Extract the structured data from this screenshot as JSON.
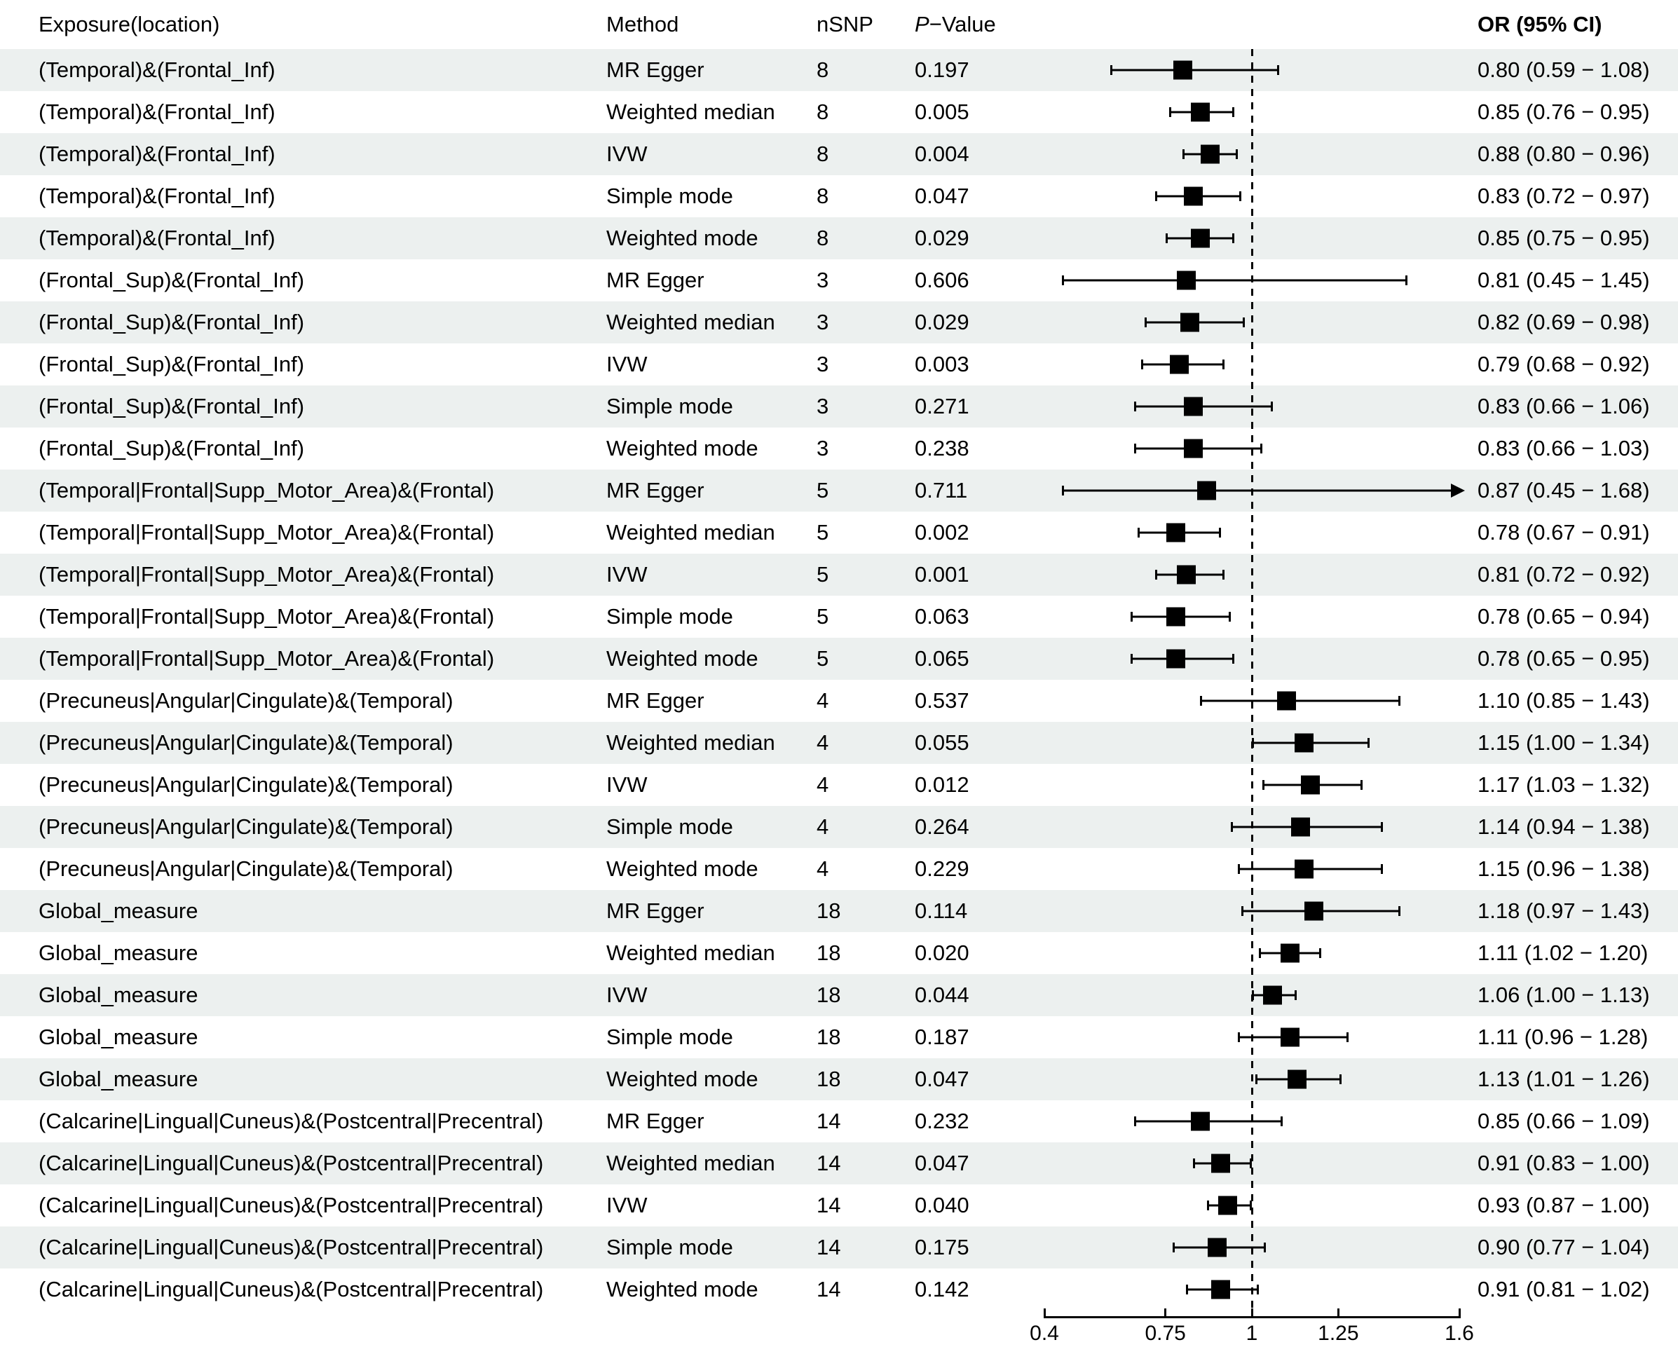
{
  "header": {
    "exposure": "Exposure(location)",
    "method": "Method",
    "nsnp": "nSNP",
    "pvalue_italic": "P",
    "pvalue_rest": "−Value",
    "or_ci": "OR (95% CI)"
  },
  "colors": {
    "stripe": "#ecf0ef",
    "marker": "#000000",
    "text": "#000000"
  },
  "axis": {
    "min": 0.4,
    "max": 1.6,
    "ref_line": 1,
    "ticks": [
      0.4,
      0.75,
      1,
      1.25,
      1.6
    ],
    "tick_labels": [
      "0.4",
      "0.75",
      "1",
      "1.25",
      "1.6"
    ]
  },
  "chart_data": {
    "type": "forest",
    "title": "",
    "xlabel": "",
    "xlim": [
      0.4,
      1.6
    ],
    "reference_line": 1,
    "rows": [
      {
        "exposure": "(Temporal)&(Frontal_Inf)",
        "method": "MR Egger",
        "nsnp": "8",
        "pvalue": "0.197",
        "or": 0.8,
        "lo": 0.59,
        "hi": 1.08,
        "label": "0.80 (0.59 − 1.08)"
      },
      {
        "exposure": "(Temporal)&(Frontal_Inf)",
        "method": "Weighted median",
        "nsnp": "8",
        "pvalue": "0.005",
        "or": 0.85,
        "lo": 0.76,
        "hi": 0.95,
        "label": "0.85 (0.76 − 0.95)"
      },
      {
        "exposure": "(Temporal)&(Frontal_Inf)",
        "method": "IVW",
        "nsnp": "8",
        "pvalue": "0.004",
        "or": 0.88,
        "lo": 0.8,
        "hi": 0.96,
        "label": "0.88 (0.80 − 0.96)"
      },
      {
        "exposure": "(Temporal)&(Frontal_Inf)",
        "method": "Simple mode",
        "nsnp": "8",
        "pvalue": "0.047",
        "or": 0.83,
        "lo": 0.72,
        "hi": 0.97,
        "label": "0.83 (0.72 − 0.97)"
      },
      {
        "exposure": "(Temporal)&(Frontal_Inf)",
        "method": "Weighted mode",
        "nsnp": "8",
        "pvalue": "0.029",
        "or": 0.85,
        "lo": 0.75,
        "hi": 0.95,
        "label": "0.85 (0.75 − 0.95)"
      },
      {
        "exposure": "(Frontal_Sup)&(Frontal_Inf)",
        "method": "MR Egger",
        "nsnp": "3",
        "pvalue": "0.606",
        "or": 0.81,
        "lo": 0.45,
        "hi": 1.45,
        "label": "0.81 (0.45 − 1.45)"
      },
      {
        "exposure": "(Frontal_Sup)&(Frontal_Inf)",
        "method": "Weighted median",
        "nsnp": "3",
        "pvalue": "0.029",
        "or": 0.82,
        "lo": 0.69,
        "hi": 0.98,
        "label": "0.82 (0.69 − 0.98)"
      },
      {
        "exposure": "(Frontal_Sup)&(Frontal_Inf)",
        "method": "IVW",
        "nsnp": "3",
        "pvalue": "0.003",
        "or": 0.79,
        "lo": 0.68,
        "hi": 0.92,
        "label": "0.79 (0.68 − 0.92)"
      },
      {
        "exposure": "(Frontal_Sup)&(Frontal_Inf)",
        "method": "Simple mode",
        "nsnp": "3",
        "pvalue": "0.271",
        "or": 0.83,
        "lo": 0.66,
        "hi": 1.06,
        "label": "0.83 (0.66 − 1.06)"
      },
      {
        "exposure": "(Frontal_Sup)&(Frontal_Inf)",
        "method": "Weighted mode",
        "nsnp": "3",
        "pvalue": "0.238",
        "or": 0.83,
        "lo": 0.66,
        "hi": 1.03,
        "label": "0.83 (0.66 − 1.03)"
      },
      {
        "exposure": "(Temporal|Frontal|Supp_Motor_Area)&(Frontal)",
        "method": "MR Egger",
        "nsnp": "5",
        "pvalue": "0.711",
        "or": 0.87,
        "lo": 0.45,
        "hi": 1.68,
        "label": "0.87 (0.45 − 1.68)"
      },
      {
        "exposure": "(Temporal|Frontal|Supp_Motor_Area)&(Frontal)",
        "method": "Weighted median",
        "nsnp": "5",
        "pvalue": "0.002",
        "or": 0.78,
        "lo": 0.67,
        "hi": 0.91,
        "label": "0.78 (0.67 − 0.91)"
      },
      {
        "exposure": "(Temporal|Frontal|Supp_Motor_Area)&(Frontal)",
        "method": "IVW",
        "nsnp": "5",
        "pvalue": "0.001",
        "or": 0.81,
        "lo": 0.72,
        "hi": 0.92,
        "label": "0.81 (0.72 − 0.92)"
      },
      {
        "exposure": "(Temporal|Frontal|Supp_Motor_Area)&(Frontal)",
        "method": "Simple mode",
        "nsnp": "5",
        "pvalue": "0.063",
        "or": 0.78,
        "lo": 0.65,
        "hi": 0.94,
        "label": "0.78 (0.65 − 0.94)"
      },
      {
        "exposure": "(Temporal|Frontal|Supp_Motor_Area)&(Frontal)",
        "method": "Weighted mode",
        "nsnp": "5",
        "pvalue": "0.065",
        "or": 0.78,
        "lo": 0.65,
        "hi": 0.95,
        "label": "0.78 (0.65 − 0.95)"
      },
      {
        "exposure": "(Precuneus|Angular|Cingulate)&(Temporal)",
        "method": "MR Egger",
        "nsnp": "4",
        "pvalue": "0.537",
        "or": 1.1,
        "lo": 0.85,
        "hi": 1.43,
        "label": "1.10 (0.85 − 1.43)"
      },
      {
        "exposure": "(Precuneus|Angular|Cingulate)&(Temporal)",
        "method": "Weighted median",
        "nsnp": "4",
        "pvalue": "0.055",
        "or": 1.15,
        "lo": 1.0,
        "hi": 1.34,
        "label": "1.15 (1.00 − 1.34)"
      },
      {
        "exposure": "(Precuneus|Angular|Cingulate)&(Temporal)",
        "method": "IVW",
        "nsnp": "4",
        "pvalue": "0.012",
        "or": 1.17,
        "lo": 1.03,
        "hi": 1.32,
        "label": "1.17 (1.03 − 1.32)"
      },
      {
        "exposure": "(Precuneus|Angular|Cingulate)&(Temporal)",
        "method": "Simple mode",
        "nsnp": "4",
        "pvalue": "0.264",
        "or": 1.14,
        "lo": 0.94,
        "hi": 1.38,
        "label": "1.14 (0.94 − 1.38)"
      },
      {
        "exposure": "(Precuneus|Angular|Cingulate)&(Temporal)",
        "method": "Weighted mode",
        "nsnp": "4",
        "pvalue": "0.229",
        "or": 1.15,
        "lo": 0.96,
        "hi": 1.38,
        "label": "1.15 (0.96 − 1.38)"
      },
      {
        "exposure": "Global_measure",
        "method": "MR Egger",
        "nsnp": "18",
        "pvalue": "0.114",
        "or": 1.18,
        "lo": 0.97,
        "hi": 1.43,
        "label": "1.18 (0.97 − 1.43)"
      },
      {
        "exposure": "Global_measure",
        "method": "Weighted median",
        "nsnp": "18",
        "pvalue": "0.020",
        "or": 1.11,
        "lo": 1.02,
        "hi": 1.2,
        "label": "1.11 (1.02 − 1.20)"
      },
      {
        "exposure": "Global_measure",
        "method": "IVW",
        "nsnp": "18",
        "pvalue": "0.044",
        "or": 1.06,
        "lo": 1.0,
        "hi": 1.13,
        "label": "1.06 (1.00 − 1.13)"
      },
      {
        "exposure": "Global_measure",
        "method": "Simple mode",
        "nsnp": "18",
        "pvalue": "0.187",
        "or": 1.11,
        "lo": 0.96,
        "hi": 1.28,
        "label": "1.11 (0.96 − 1.28)"
      },
      {
        "exposure": "Global_measure",
        "method": "Weighted mode",
        "nsnp": "18",
        "pvalue": "0.047",
        "or": 1.13,
        "lo": 1.01,
        "hi": 1.26,
        "label": "1.13 (1.01 − 1.26)"
      },
      {
        "exposure": "(Calcarine|Lingual|Cuneus)&(Postcentral|Precentral)",
        "method": "MR Egger",
        "nsnp": "14",
        "pvalue": "0.232",
        "or": 0.85,
        "lo": 0.66,
        "hi": 1.09,
        "label": "0.85 (0.66 − 1.09)"
      },
      {
        "exposure": "(Calcarine|Lingual|Cuneus)&(Postcentral|Precentral)",
        "method": "Weighted median",
        "nsnp": "14",
        "pvalue": "0.047",
        "or": 0.91,
        "lo": 0.83,
        "hi": 1.0,
        "label": "0.91 (0.83 − 1.00)"
      },
      {
        "exposure": "(Calcarine|Lingual|Cuneus)&(Postcentral|Precentral)",
        "method": "IVW",
        "nsnp": "14",
        "pvalue": "0.040",
        "or": 0.93,
        "lo": 0.87,
        "hi": 1.0,
        "label": "0.93 (0.87 − 1.00)"
      },
      {
        "exposure": "(Calcarine|Lingual|Cuneus)&(Postcentral|Precentral)",
        "method": "Simple mode",
        "nsnp": "14",
        "pvalue": "0.175",
        "or": 0.9,
        "lo": 0.77,
        "hi": 1.04,
        "label": "0.90 (0.77 − 1.04)"
      },
      {
        "exposure": "(Calcarine|Lingual|Cuneus)&(Postcentral|Precentral)",
        "method": "Weighted mode",
        "nsnp": "14",
        "pvalue": "0.142",
        "or": 0.91,
        "lo": 0.81,
        "hi": 1.02,
        "label": "0.91 (0.81 − 1.02)"
      }
    ]
  }
}
